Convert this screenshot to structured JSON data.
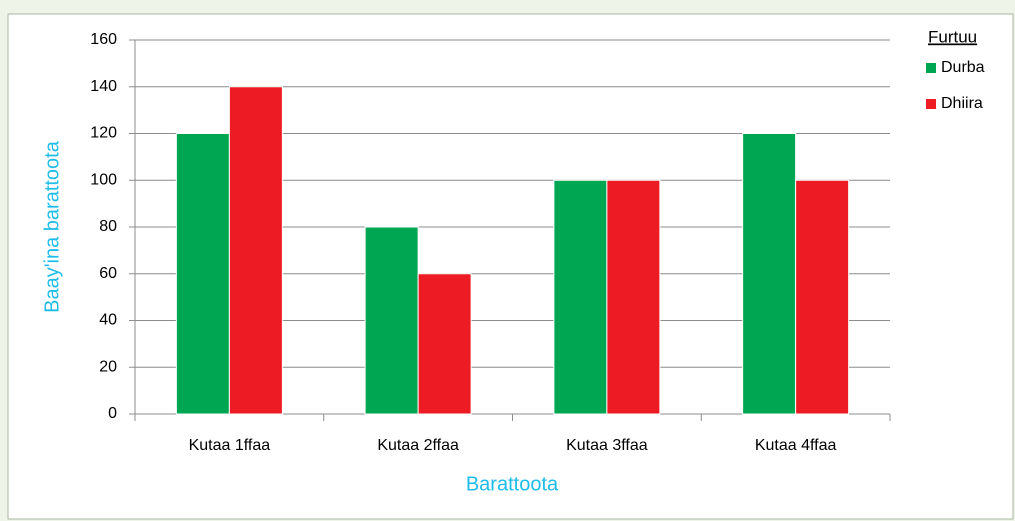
{
  "chart_data": {
    "type": "bar",
    "y_label": "Baay'ina barattoota",
    "x_label": "Barattoota",
    "legend_title": "Furtuu",
    "legend_position": "right",
    "categories": [
      "Kutaa 1ffaa",
      "Kutaa 2ffaa",
      "Kutaa 3ffaa",
      "Kutaa 4ffaa"
    ],
    "series": [
      {
        "name": "Durba",
        "color": "#00a651",
        "values": [
          120,
          80,
          100,
          120
        ]
      },
      {
        "name": "Dhiira",
        "color": "#ed1c24",
        "values": [
          140,
          60,
          100,
          100
        ]
      }
    ],
    "ylim": [
      0,
      160
    ],
    "yticks": [
      0,
      20,
      40,
      60,
      80,
      100,
      120,
      140,
      160
    ],
    "grid": true
  }
}
